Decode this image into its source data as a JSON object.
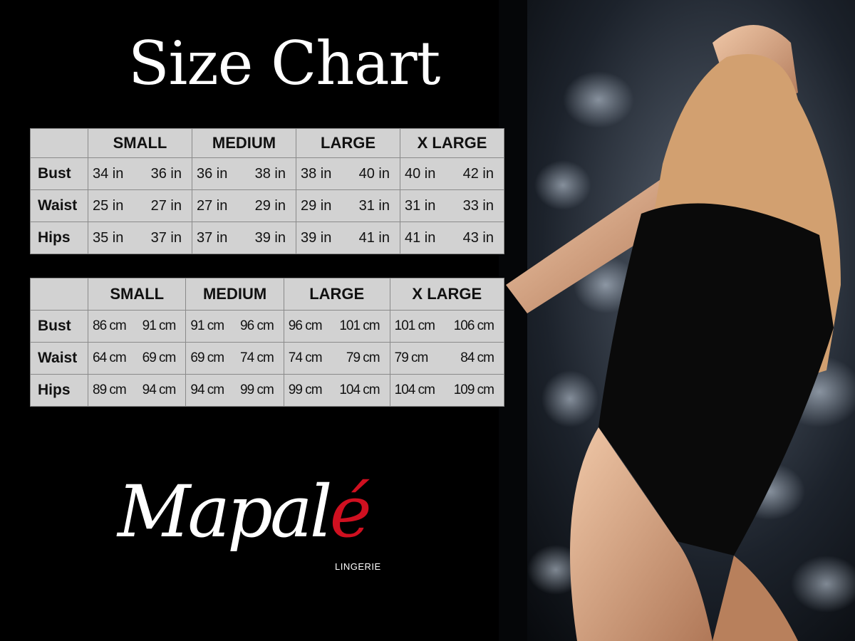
{
  "title": "Size Chart",
  "sizes": [
    "SMALL",
    "MEDIUM",
    "LARGE",
    "X LARGE"
  ],
  "inches_table": {
    "rows": [
      {
        "label": "Bust",
        "values": [
          "34 in",
          "36 in",
          "36 in",
          "38 in",
          "38 in",
          "40 in",
          "40 in",
          "42 in"
        ]
      },
      {
        "label": "Waist",
        "values": [
          "25 in",
          "27 in",
          "27 in",
          "29 in",
          "29 in",
          "31 in",
          "31 in",
          "33 in"
        ]
      },
      {
        "label": "Hips",
        "values": [
          "35 in",
          "37 in",
          "37 in",
          "39 in",
          "39 in",
          "41 in",
          "41 in",
          "43 in"
        ]
      }
    ]
  },
  "cm_table": {
    "rows": [
      {
        "label": "Bust",
        "values": [
          "86 cm",
          "91 cm",
          "91 cm",
          "96 cm",
          "96 cm",
          "101 cm",
          "101 cm",
          "106 cm"
        ]
      },
      {
        "label": "Waist",
        "values": [
          "64 cm",
          "69 cm",
          "69 cm",
          "74 cm",
          "74 cm",
          "79  cm",
          "79 cm",
          "84 cm"
        ]
      },
      {
        "label": "Hips",
        "values": [
          "89 cm",
          "94 cm",
          "94 cm",
          "99 cm",
          "99 cm",
          "104 cm",
          "104 cm",
          "109 cm"
        ]
      }
    ]
  },
  "logo": {
    "word": "Mapal",
    "accent_letter": "é",
    "subtitle": "LINGERIE",
    "accent_color": "#d01020"
  },
  "colors": {
    "background": "#000000",
    "table_fill": "#d2d2d2",
    "table_border": "#8a8a8a"
  }
}
